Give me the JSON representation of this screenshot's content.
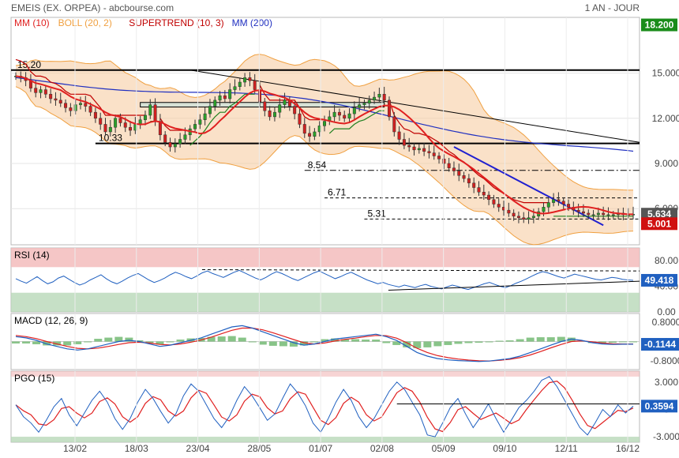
{
  "header": {
    "title": "EMEIS (EX. ORPEA) - abcbourse.com",
    "period": "1 AN - JOUR"
  },
  "chart_data": [
    {
      "panel": "price",
      "type": "candlestick",
      "legend": [
        {
          "label": "MM (10)",
          "color": "#e02020"
        },
        {
          "label": "BOLL (20, 2)",
          "color": "#f0a040"
        },
        {
          "label": "SUPERTREND (10, 3)",
          "color": "#c00000"
        },
        {
          "label": "MM (200)",
          "color": "#2030c0"
        }
      ],
      "y_ticks": [
        "15.000",
        "12.000",
        "9.000",
        "6.000"
      ],
      "ylim": [
        3.6,
        18.7
      ],
      "x_ticks": [
        "13/02",
        "18/03",
        "23/04",
        "28/05",
        "01/07",
        "02/08",
        "05/09",
        "09/10",
        "12/11",
        "16/12"
      ],
      "levels": [
        {
          "label": "15.20",
          "value": 15.2
        },
        {
          "label": "10.33",
          "value": 10.33
        },
        {
          "label": "8.54",
          "value": 8.54
        },
        {
          "label": "6.71",
          "value": 6.71
        },
        {
          "label": "5.31",
          "value": 5.31
        }
      ],
      "badges": [
        {
          "label": "18.200",
          "value": 18.2,
          "color": "#1a8c1a"
        },
        {
          "label": "5.634",
          "value": 5.634,
          "color": "#555555"
        },
        {
          "label": "5.001",
          "value": 5.001,
          "color": "#d01010"
        }
      ],
      "close_series": [
        14.8,
        14.7,
        14.5,
        14.0,
        13.7,
        13.9,
        13.6,
        13.3,
        13.2,
        13.0,
        12.7,
        12.5,
        12.9,
        13.0,
        12.8,
        12.4,
        12.0,
        11.6,
        11.1,
        11.4,
        12.0,
        11.7,
        11.4,
        11.2,
        11.6,
        11.9,
        12.2,
        12.9,
        11.8,
        10.9,
        10.4,
        10.1,
        10.3,
        10.6,
        10.9,
        11.3,
        11.6,
        11.9,
        12.3,
        12.8,
        13.2,
        13.5,
        13.3,
        13.9,
        14.1,
        14.4,
        14.7,
        14.5,
        13.9,
        13.1,
        12.5,
        12.1,
        12.4,
        12.9,
        13.2,
        12.8,
        12.3,
        11.6,
        11.0,
        10.8,
        11.1,
        11.5,
        11.8,
        12.1,
        12.4,
        12.2,
        12.0,
        12.3,
        12.7,
        12.9,
        13.0,
        13.2,
        13.4,
        13.6,
        13.2,
        12.1,
        11.1,
        10.6,
        10.2,
        10.1,
        9.9,
        10.0,
        9.8,
        9.7,
        9.5,
        9.3,
        9.0,
        8.7,
        8.5,
        8.2,
        8.0,
        7.7,
        7.4,
        7.1,
        6.9,
        6.6,
        6.3,
        6.1,
        5.9,
        5.7,
        5.5,
        5.4,
        5.3,
        5.4,
        5.5,
        5.8,
        6.1,
        6.4,
        6.6,
        6.5,
        6.3,
        6.1,
        5.9,
        5.8,
        5.7,
        5.6,
        5.6,
        5.7,
        5.6,
        5.6,
        5.6,
        5.7,
        5.6,
        5.6,
        5.63
      ],
      "indicator_lines": {
        "mm200_start": 14.7,
        "mm200_end": 9.5,
        "trendline_start": 15.2,
        "trendline_end": 10.4
      }
    },
    {
      "panel": "rsi",
      "type": "line",
      "legend": [
        {
          "label": "RSI (14)",
          "color": "#2060c0"
        }
      ],
      "y_ticks": [
        "80.00",
        "40.00",
        "0.00"
      ],
      "ylim": [
        0,
        100
      ],
      "badge": {
        "label": "49.418",
        "value": 49.418,
        "color": "#2060c0"
      },
      "values": [
        52,
        48,
        45,
        50,
        55,
        49,
        44,
        47,
        53,
        56,
        51,
        46,
        42,
        45,
        50,
        54,
        58,
        52,
        47,
        44,
        48,
        53,
        57,
        60,
        55,
        50,
        46,
        49,
        53,
        58,
        62,
        59,
        55,
        52,
        56,
        61,
        64,
        60,
        57,
        54,
        58,
        62,
        65,
        61,
        57,
        53,
        50,
        54,
        59,
        63,
        60,
        56,
        52,
        49,
        53,
        57,
        61,
        64,
        60,
        56,
        52,
        55,
        59,
        62,
        58,
        54,
        50,
        47,
        44,
        46,
        43,
        41,
        39,
        42,
        40,
        38,
        41,
        43,
        40,
        38,
        36,
        39,
        42,
        40,
        37,
        35,
        38,
        41,
        44,
        46,
        43,
        40,
        38,
        41,
        45,
        48,
        52,
        56,
        60,
        63,
        61,
        58,
        55,
        53,
        56,
        59,
        57,
        55,
        53,
        51,
        50,
        52,
        54,
        53,
        51,
        50,
        49.4
      ]
    },
    {
      "panel": "macd",
      "type": "line+histogram",
      "legend": [
        {
          "label": "MACD (12, 26, 9)",
          "color": "#2060c0"
        }
      ],
      "y_ticks": [
        "0.8000",
        "0",
        "-0.8000"
      ],
      "ylim": [
        -1.15,
        1.15
      ],
      "badge": {
        "label": "-0.1144",
        "value": -0.1144,
        "color": "#2060c0"
      },
      "macd": [
        0.2,
        0.15,
        0.05,
        -0.1,
        -0.2,
        -0.3,
        -0.35,
        -0.3,
        -0.2,
        -0.1,
        0.0,
        0.05,
        0.0,
        -0.1,
        -0.2,
        -0.15,
        -0.05,
        0.05,
        0.15,
        0.3,
        0.45,
        0.6,
        0.65,
        0.55,
        0.4,
        0.25,
        0.1,
        -0.05,
        -0.15,
        -0.1,
        0.0,
        0.1,
        0.15,
        0.2,
        0.25,
        0.3,
        0.2,
        0.05,
        -0.2,
        -0.45,
        -0.6,
        -0.7,
        -0.75,
        -0.78,
        -0.8,
        -0.82,
        -0.8,
        -0.75,
        -0.7,
        -0.6,
        -0.45,
        -0.3,
        -0.15,
        0.0,
        0.1,
        0.05,
        -0.05,
        -0.1,
        -0.12,
        -0.11,
        -0.11
      ],
      "signal": [
        0.25,
        0.2,
        0.12,
        0.0,
        -0.1,
        -0.2,
        -0.28,
        -0.3,
        -0.27,
        -0.2,
        -0.12,
        -0.05,
        -0.03,
        -0.06,
        -0.12,
        -0.14,
        -0.1,
        -0.03,
        0.06,
        0.18,
        0.32,
        0.46,
        0.55,
        0.55,
        0.48,
        0.36,
        0.22,
        0.08,
        -0.05,
        -0.1,
        -0.06,
        0.02,
        0.09,
        0.14,
        0.2,
        0.25,
        0.24,
        0.14,
        -0.05,
        -0.28,
        -0.45,
        -0.58,
        -0.66,
        -0.72,
        -0.76,
        -0.79,
        -0.8,
        -0.77,
        -0.73,
        -0.66,
        -0.55,
        -0.41,
        -0.26,
        -0.12,
        0.0,
        0.03,
        -0.01,
        -0.06,
        -0.09,
        -0.1,
        -0.1
      ]
    },
    {
      "panel": "pgo",
      "type": "line",
      "legend": [
        {
          "label": "PGO (15)",
          "color": "#2060c0"
        }
      ],
      "y_ticks": [
        "3.000",
        "0",
        "-3.000"
      ],
      "ylim": [
        -3.6,
        4.2
      ],
      "badge": {
        "label": "0.3594",
        "value": 0.3594,
        "color": "#2060c0"
      },
      "pgo": [
        0.5,
        -0.8,
        -1.5,
        -2.5,
        -1.2,
        0.3,
        1.2,
        -0.6,
        -1.8,
        -0.4,
        1.0,
        2.0,
        0.8,
        -1.0,
        -2.2,
        -1.0,
        0.8,
        2.2,
        1.2,
        -0.2,
        -1.5,
        -0.5,
        1.5,
        2.8,
        2.0,
        0.5,
        -1.0,
        -2.0,
        -0.8,
        1.0,
        2.5,
        1.5,
        0.2,
        -1.2,
        -0.5,
        1.2,
        2.8,
        1.8,
        0.4,
        -1.5,
        -2.5,
        -1.0,
        0.8,
        2.2,
        1.0,
        -0.8,
        -2.0,
        -1.0,
        0.5,
        2.0,
        3.0,
        2.2,
        0.8,
        -0.6,
        -2.8,
        -3.0,
        -1.5,
        0.2,
        1.2,
        -0.5,
        -2.0,
        -0.8,
        0.6,
        -1.0,
        -2.5,
        -1.2,
        0.2,
        1.0,
        2.0,
        3.2,
        3.6,
        2.5,
        1.0,
        -0.5,
        -2.0,
        -2.8,
        -1.5,
        0.0,
        -0.8,
        0.5,
        -0.4,
        0.36
      ]
    }
  ]
}
